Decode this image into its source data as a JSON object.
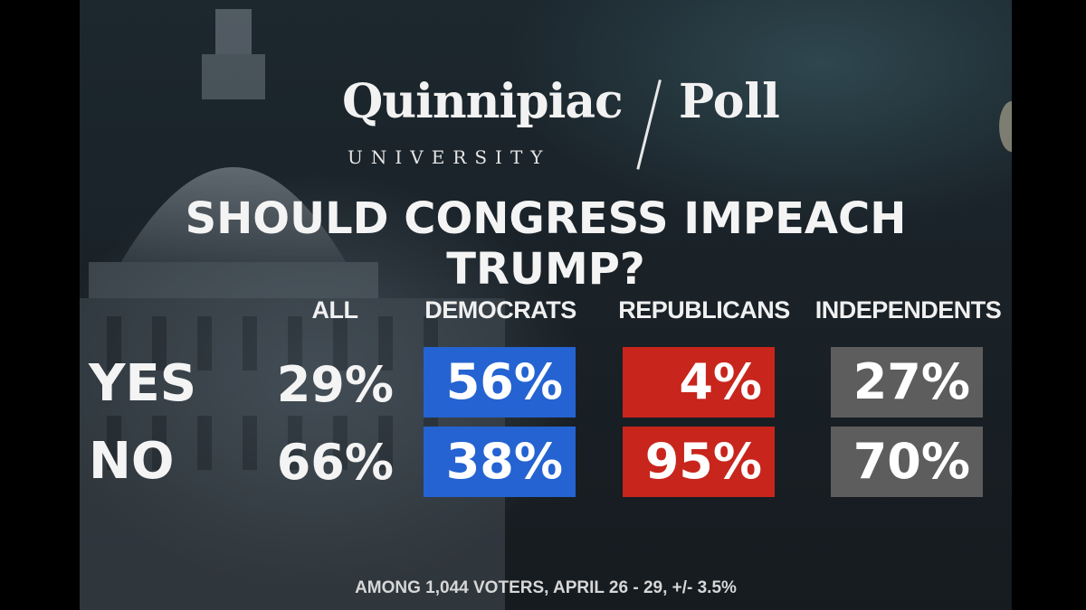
{
  "logo": {
    "name": "Quinnipiac",
    "subname": "UNIVERSITY",
    "poll": "Poll"
  },
  "chart_data": {
    "type": "table",
    "title": "SHOULD CONGRESS IMPEACH TRUMP?",
    "columns": [
      "ALL",
      "DEMOCRATS",
      "REPUBLICANS",
      "INDEPENDENTS"
    ],
    "rows": [
      {
        "label": "YES",
        "values": [
          "29%",
          "56%",
          "4%",
          "27%"
        ]
      },
      {
        "label": "NO",
        "values": [
          "66%",
          "38%",
          "95%",
          "70%"
        ]
      }
    ],
    "colors": {
      "DEMOCRATS": "#2463d1",
      "REPUBLICANS": "#c8251c",
      "INDEPENDENTS": "#5d5d5d"
    },
    "footnote": "AMONG 1,044 VOTERS, APRIL 26 - 29, +/- 3.5%"
  }
}
